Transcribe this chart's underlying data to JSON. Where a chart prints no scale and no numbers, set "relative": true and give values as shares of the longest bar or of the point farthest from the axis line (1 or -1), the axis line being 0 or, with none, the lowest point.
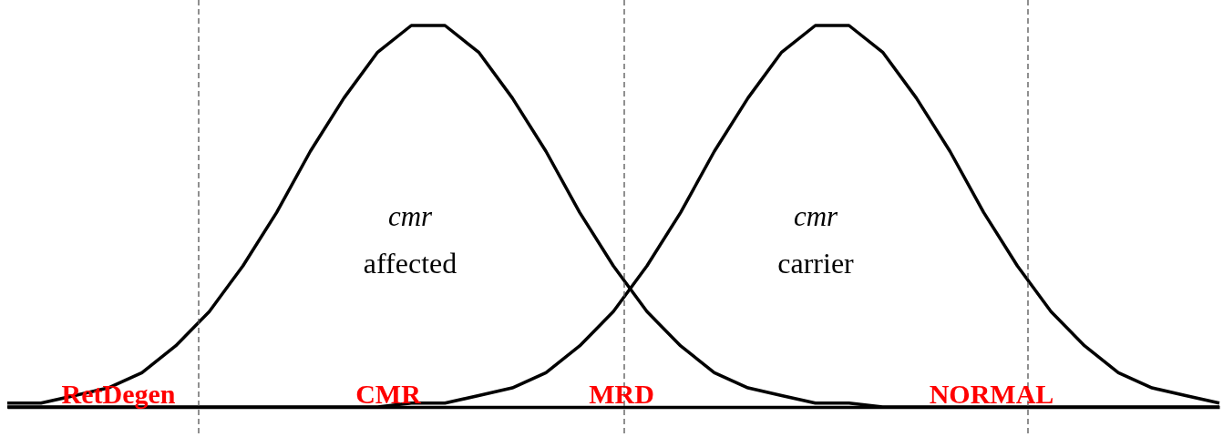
{
  "chart_data": {
    "type": "line",
    "relative": true,
    "categories": [
      null,
      null,
      null,
      null,
      null,
      null,
      null,
      null,
      null,
      null,
      null,
      null,
      null,
      null,
      null,
      null,
      null,
      null,
      null,
      null,
      null,
      null,
      null,
      null,
      null,
      null,
      null,
      null,
      null,
      null,
      null,
      null,
      null,
      null,
      null,
      null,
      null
    ],
    "series": [
      {
        "color": "#000000",
        "values": [
          0.01,
          0.01,
          0.03,
          0.05,
          0.09,
          0.16,
          0.25,
          0.37,
          0.51,
          0.67,
          0.81,
          0.93,
          1.0,
          1.0,
          0.93,
          0.81,
          0.67,
          0.51,
          0.37,
          0.25,
          0.16,
          0.09,
          0.05,
          0.03,
          0.01,
          0.01,
          0,
          0,
          0,
          0,
          0,
          0,
          0,
          0,
          0,
          0,
          0
        ]
      },
      {
        "color": "#000000",
        "values": [
          0,
          0,
          0,
          0,
          0,
          0,
          0,
          0,
          0,
          0,
          0,
          0,
          0.01,
          0.01,
          0.03,
          0.05,
          0.09,
          0.16,
          0.25,
          0.37,
          0.51,
          0.67,
          0.81,
          0.93,
          1.0,
          1.0,
          0.93,
          0.81,
          0.67,
          0.51,
          0.37,
          0.25,
          0.16,
          0.09,
          0.05,
          0.03,
          0.01
        ]
      }
    ],
    "annotations": [
      "cmr",
      "affected",
      "cmr",
      "carrier",
      "RetDegen",
      "CMR",
      "MRD",
      "NORMAL"
    ],
    "marker": "none",
    "line_style": "solid",
    "grid": false
  }
}
